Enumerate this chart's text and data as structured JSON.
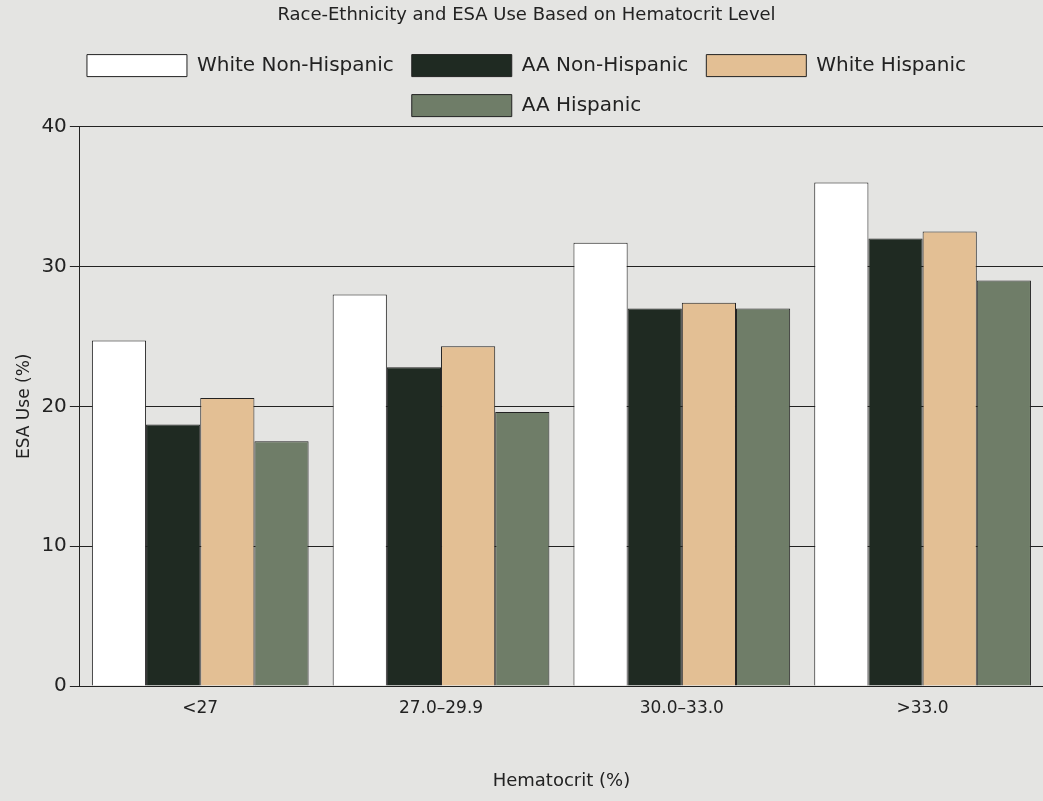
{
  "chart_data": {
    "type": "bar",
    "title": "Race-Ethnicity and ESA Use Based on Hematocrit Level",
    "xlabel": "Hematocrit (%)",
    "ylabel": "ESA Use (%)",
    "categories": [
      "<27",
      "27.0–29.9",
      "30.0–33.0",
      ">33.0"
    ],
    "series": [
      {
        "name": "White Non-Hispanic",
        "color": "#ffffff",
        "values": [
          24.7,
          28.0,
          31.7,
          36.0
        ]
      },
      {
        "name": "AA Non-Hispanic",
        "color": "#1f2a22",
        "values": [
          18.7,
          22.8,
          27.0,
          32.0
        ]
      },
      {
        "name": "White Hispanic",
        "color": "#e3bf94",
        "values": [
          20.6,
          24.3,
          27.4,
          32.5
        ]
      },
      {
        "name": "AA Hispanic",
        "color": "#6f7d68",
        "values": [
          17.5,
          19.6,
          27.0,
          29.0
        ]
      }
    ],
    "ylim": [
      0,
      40
    ],
    "yticks": [
      0,
      10,
      20,
      30,
      40
    ],
    "grid": "y",
    "legend": "top"
  }
}
